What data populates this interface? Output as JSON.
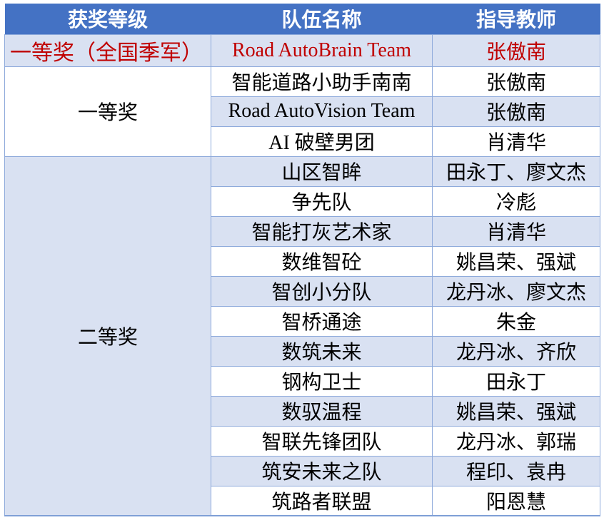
{
  "colors": {
    "header_bg": "#4472C4",
    "header_text": "#FFFFFF",
    "band_bg": "#D9E1F2",
    "white_bg": "#FFFFFF",
    "highlight_text": "#C00000",
    "body_text": "#000000",
    "border": "#8EAADB",
    "border_strong": "#7F9FD6"
  },
  "table": {
    "headers": [
      "获奖等级",
      "队伍名称",
      "指导教师"
    ],
    "champion_row": {
      "level": "一等奖（全国季军）",
      "team": "Road AutoBrain Team",
      "teacher": "张傲南"
    },
    "groups": [
      {
        "level": "一等奖",
        "rows": [
          {
            "team": "智能道路小助手南南",
            "teacher": "张傲南"
          },
          {
            "team": "Road AutoVision Team",
            "teacher": "张傲南"
          },
          {
            "team": "AI 破壁男团",
            "teacher": "肖清华"
          }
        ]
      },
      {
        "level": "二等奖",
        "rows": [
          {
            "team": "山区智眸",
            "teacher": "田永丁、廖文杰"
          },
          {
            "team": "争先队",
            "teacher": "冷彪"
          },
          {
            "team": "智能打灰艺术家",
            "teacher": "肖清华"
          },
          {
            "team": "数维智砼",
            "teacher": "姚昌荣、强斌"
          },
          {
            "team": "智创小分队",
            "teacher": "龙丹冰、廖文杰"
          },
          {
            "team": "智桥通途",
            "teacher": "朱金"
          },
          {
            "team": "数筑未来",
            "teacher": "龙丹冰、齐欣"
          },
          {
            "team": "钢构卫士",
            "teacher": "田永丁"
          },
          {
            "team": "数驭温程",
            "teacher": "姚昌荣、强斌"
          },
          {
            "team": "智联先锋团队",
            "teacher": "龙丹冰、郭瑞"
          },
          {
            "team": "筑安未来之队",
            "teacher": "程印、袁冉"
          },
          {
            "team": "筑路者联盟",
            "teacher": "阳恩慧"
          }
        ]
      }
    ]
  }
}
